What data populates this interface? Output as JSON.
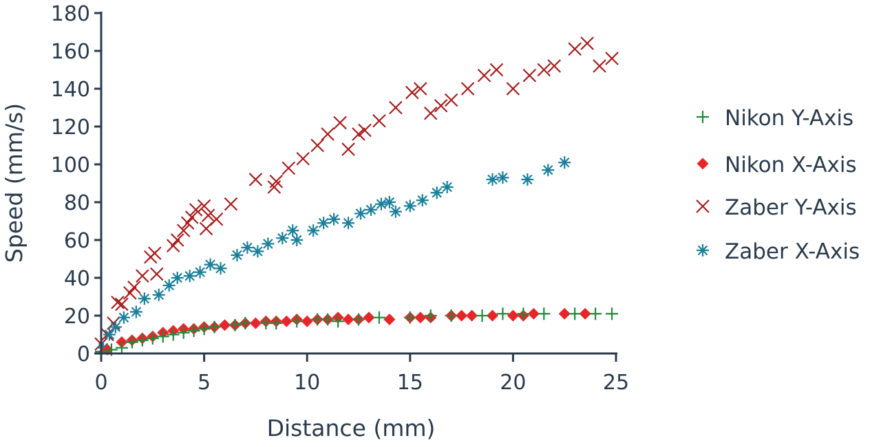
{
  "chart_data": {
    "type": "scatter",
    "title": "",
    "xlabel": "Distance (mm)",
    "ylabel": "Speed (mm/s)",
    "xlim": [
      0,
      25
    ],
    "ylim": [
      0,
      180
    ],
    "xticks": [
      0,
      5,
      10,
      15,
      20,
      25
    ],
    "yticks": [
      0,
      20,
      40,
      60,
      80,
      100,
      120,
      140,
      160,
      180
    ],
    "grid": false,
    "legend_position": "right",
    "series": [
      {
        "name": "Nikon Y-Axis",
        "marker": "plus",
        "color": "#1e8a3a",
        "points": [
          [
            0,
            1
          ],
          [
            0.5,
            2
          ],
          [
            1,
            3
          ],
          [
            1.5,
            6
          ],
          [
            2,
            7
          ],
          [
            2.5,
            8
          ],
          [
            3,
            9
          ],
          [
            3.5,
            10
          ],
          [
            4,
            11
          ],
          [
            4.5,
            12
          ],
          [
            5,
            13
          ],
          [
            5.5,
            14
          ],
          [
            6.5,
            15
          ],
          [
            7,
            16
          ],
          [
            8,
            16
          ],
          [
            8.5,
            16
          ],
          [
            9.5,
            17
          ],
          [
            10.5,
            18
          ],
          [
            11,
            18
          ],
          [
            11.5,
            17
          ],
          [
            12.5,
            18
          ],
          [
            13.5,
            19
          ],
          [
            15,
            19
          ],
          [
            16,
            20
          ],
          [
            17,
            20
          ],
          [
            18.5,
            20
          ],
          [
            19.5,
            21
          ],
          [
            20.5,
            21
          ],
          [
            21.5,
            21
          ],
          [
            23,
            21
          ],
          [
            24,
            21
          ],
          [
            24.8,
            21
          ]
        ]
      },
      {
        "name": "Nikon X-Axis",
        "marker": "diamond",
        "color": "#e8262a",
        "points": [
          [
            0.3,
            2
          ],
          [
            1,
            6
          ],
          [
            1.5,
            7
          ],
          [
            2,
            8
          ],
          [
            2.5,
            9
          ],
          [
            3,
            11
          ],
          [
            3.5,
            12
          ],
          [
            4,
            13
          ],
          [
            4.5,
            13
          ],
          [
            5,
            14
          ],
          [
            5.5,
            14
          ],
          [
            6,
            15
          ],
          [
            6.5,
            15
          ],
          [
            7,
            16
          ],
          [
            7.5,
            16
          ],
          [
            8,
            17
          ],
          [
            8.5,
            17
          ],
          [
            9,
            17
          ],
          [
            9.5,
            18
          ],
          [
            10,
            17
          ],
          [
            10.5,
            18
          ],
          [
            11,
            18
          ],
          [
            11.5,
            19
          ],
          [
            12,
            18
          ],
          [
            12.5,
            18
          ],
          [
            13,
            19
          ],
          [
            14,
            18
          ],
          [
            15,
            19
          ],
          [
            15.5,
            19
          ],
          [
            16,
            19
          ],
          [
            17,
            20
          ],
          [
            17.5,
            20
          ],
          [
            18,
            20
          ],
          [
            19,
            20
          ],
          [
            20,
            20
          ],
          [
            20.5,
            20
          ],
          [
            21,
            21
          ],
          [
            22.5,
            21
          ],
          [
            23.5,
            21
          ]
        ]
      },
      {
        "name": "Zaber Y-Axis",
        "marker": "x",
        "color": "#a81c1c",
        "points": [
          [
            0,
            5
          ],
          [
            0.3,
            10
          ],
          [
            0.6,
            16
          ],
          [
            0.8,
            27
          ],
          [
            1,
            26
          ],
          [
            1.4,
            32
          ],
          [
            1.6,
            35
          ],
          [
            2,
            41
          ],
          [
            2.7,
            42
          ],
          [
            2.4,
            51
          ],
          [
            2.6,
            53
          ],
          [
            3.5,
            57
          ],
          [
            3.7,
            60
          ],
          [
            4,
            65
          ],
          [
            4.2,
            69
          ],
          [
            4.4,
            72
          ],
          [
            4.6,
            76
          ],
          [
            5,
            78
          ],
          [
            5.1,
            66
          ],
          [
            5.2,
            73
          ],
          [
            5.6,
            71
          ],
          [
            6.3,
            79
          ],
          [
            7.5,
            92
          ],
          [
            8.4,
            88
          ],
          [
            8.5,
            91
          ],
          [
            9.1,
            98
          ],
          [
            9.8,
            103
          ],
          [
            10.5,
            110
          ],
          [
            11,
            116
          ],
          [
            11.6,
            122
          ],
          [
            12,
            108
          ],
          [
            12.5,
            116
          ],
          [
            12.8,
            118
          ],
          [
            13.5,
            123
          ],
          [
            14.3,
            130
          ],
          [
            15.1,
            138
          ],
          [
            15.5,
            140
          ],
          [
            16,
            127
          ],
          [
            16.5,
            131
          ],
          [
            17,
            134
          ],
          [
            17.8,
            140
          ],
          [
            18.6,
            147
          ],
          [
            19.2,
            150
          ],
          [
            20,
            140
          ],
          [
            20.8,
            147
          ],
          [
            21.5,
            150
          ],
          [
            22,
            152
          ],
          [
            23,
            161
          ],
          [
            23.6,
            164
          ],
          [
            24.2,
            152
          ],
          [
            24.8,
            156
          ]
        ]
      },
      {
        "name": "Zaber X-Axis",
        "marker": "asterisk",
        "color": "#1a7f9a",
        "points": [
          [
            0.1,
            3
          ],
          [
            0.4,
            10
          ],
          [
            0.7,
            14
          ],
          [
            1.1,
            19
          ],
          [
            1.7,
            22
          ],
          [
            2.1,
            29
          ],
          [
            2.8,
            31
          ],
          [
            3.3,
            36
          ],
          [
            3.7,
            40
          ],
          [
            4.3,
            41
          ],
          [
            4.8,
            43
          ],
          [
            5.3,
            47
          ],
          [
            5.8,
            45
          ],
          [
            6.6,
            52
          ],
          [
            7.1,
            56
          ],
          [
            7.6,
            54
          ],
          [
            8.1,
            58
          ],
          [
            8.8,
            61
          ],
          [
            9.3,
            65
          ],
          [
            9.5,
            60
          ],
          [
            10.3,
            65
          ],
          [
            10.8,
            69
          ],
          [
            11.3,
            71
          ],
          [
            12,
            69
          ],
          [
            12.6,
            74
          ],
          [
            13.1,
            76
          ],
          [
            13.6,
            79
          ],
          [
            14,
            80
          ],
          [
            14.3,
            75
          ],
          [
            15,
            78
          ],
          [
            15.6,
            81
          ],
          [
            16.3,
            85
          ],
          [
            16.8,
            88
          ],
          [
            19,
            92
          ],
          [
            19.5,
            93
          ],
          [
            20.7,
            92
          ],
          [
            21.7,
            97
          ],
          [
            22.5,
            101
          ]
        ]
      }
    ]
  }
}
